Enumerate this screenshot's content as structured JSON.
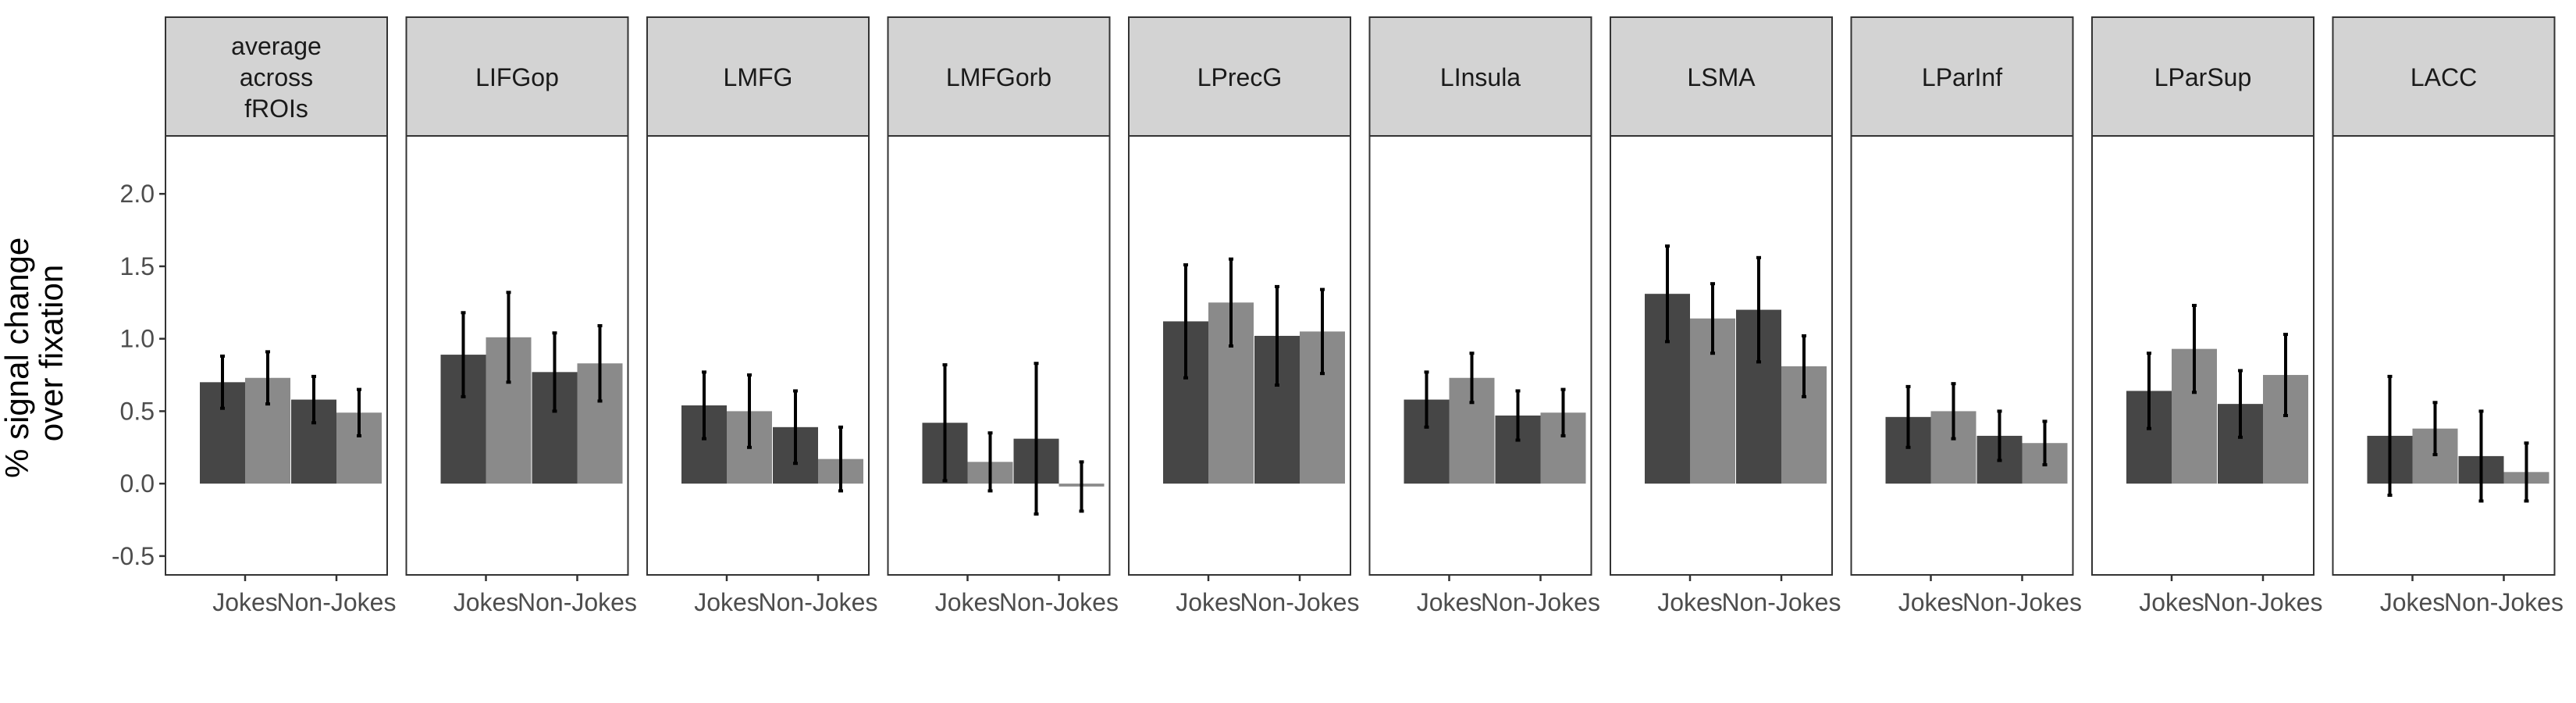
{
  "chart_data": {
    "type": "bar",
    "ylabel": "% signal change\nover fixation",
    "xlabel": "",
    "ylim": [
      -0.63,
      2.4
    ],
    "yticks": [
      -0.5,
      0.0,
      0.5,
      1.0,
      1.5,
      2.0
    ],
    "ytick_labels": [
      "-0.5",
      "0.0",
      "0.5",
      "1.0",
      "1.5",
      "2.0"
    ],
    "grid": false,
    "categories": [
      "Jokes",
      "Non-Jokes"
    ],
    "series_colors": [
      "#464646",
      "#8a8a8a"
    ],
    "panels": [
      {
        "title": "average\nacross\nfROIs",
        "values": [
          [
            0.7,
            0.73
          ],
          [
            0.58,
            0.49
          ]
        ],
        "errors": [
          [
            0.18,
            0.18
          ],
          [
            0.16,
            0.16
          ]
        ]
      },
      {
        "title": "LIFGop",
        "values": [
          [
            0.89,
            1.01
          ],
          [
            0.77,
            0.83
          ]
        ],
        "errors": [
          [
            0.29,
            0.31
          ],
          [
            0.27,
            0.26
          ]
        ]
      },
      {
        "title": "LMFG",
        "values": [
          [
            0.54,
            0.5
          ],
          [
            0.39,
            0.17
          ]
        ],
        "errors": [
          [
            0.23,
            0.25
          ],
          [
            0.25,
            0.22
          ]
        ]
      },
      {
        "title": "LMFGorb",
        "values": [
          [
            0.42,
            0.15
          ],
          [
            0.31,
            -0.02
          ]
        ],
        "errors": [
          [
            0.4,
            0.2
          ],
          [
            0.52,
            0.17
          ]
        ]
      },
      {
        "title": "LPrecG",
        "values": [
          [
            1.12,
            1.25
          ],
          [
            1.02,
            1.05
          ]
        ],
        "errors": [
          [
            0.39,
            0.3
          ],
          [
            0.34,
            0.29
          ]
        ]
      },
      {
        "title": "LInsula",
        "values": [
          [
            0.58,
            0.73
          ],
          [
            0.47,
            0.49
          ]
        ],
        "errors": [
          [
            0.19,
            0.17
          ],
          [
            0.17,
            0.16
          ]
        ]
      },
      {
        "title": "LSMA",
        "values": [
          [
            1.31,
            1.14
          ],
          [
            1.2,
            0.81
          ]
        ],
        "errors": [
          [
            0.33,
            0.24
          ],
          [
            0.36,
            0.21
          ]
        ]
      },
      {
        "title": "LParInf",
        "values": [
          [
            0.46,
            0.5
          ],
          [
            0.33,
            0.28
          ]
        ],
        "errors": [
          [
            0.21,
            0.19
          ],
          [
            0.17,
            0.15
          ]
        ]
      },
      {
        "title": "LParSup",
        "values": [
          [
            0.64,
            0.93
          ],
          [
            0.55,
            0.75
          ]
        ],
        "errors": [
          [
            0.26,
            0.3
          ],
          [
            0.23,
            0.28
          ]
        ]
      },
      {
        "title": "LACC",
        "values": [
          [
            0.33,
            0.38
          ],
          [
            0.19,
            0.08
          ]
        ],
        "errors": [
          [
            0.41,
            0.18
          ],
          [
            0.31,
            0.2
          ]
        ]
      }
    ]
  }
}
